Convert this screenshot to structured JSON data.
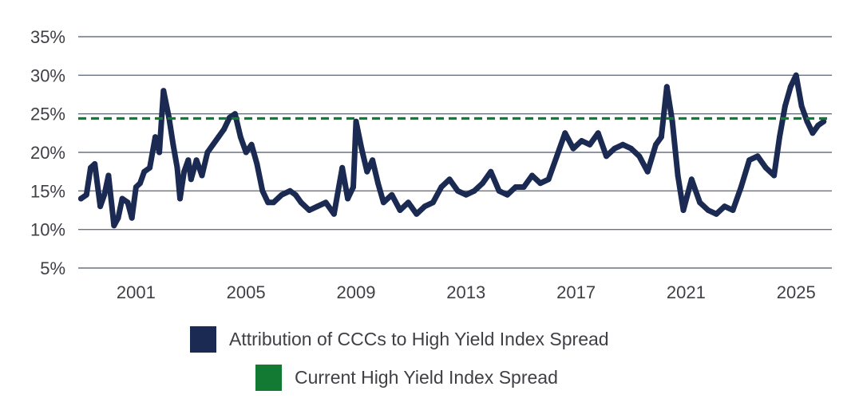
{
  "chart_data": {
    "type": "line",
    "ylim": [
      5,
      35
    ],
    "xlim": [
      1998.9,
      2026.3
    ],
    "y_ticks": [
      "5%",
      "10%",
      "15%",
      "20%",
      "25%",
      "30%",
      "35%"
    ],
    "y_tick_values": [
      5,
      10,
      15,
      20,
      25,
      30,
      35
    ],
    "x_ticks": [
      "2001",
      "2005",
      "2009",
      "2013",
      "2017",
      "2021",
      "2025"
    ],
    "x_tick_values": [
      2001,
      2005,
      2009,
      2013,
      2017,
      2021,
      2025
    ],
    "grid": true,
    "series": [
      {
        "name": "Attribution of CCCs to High Yield Index Spread",
        "color": "#1b2a52",
        "style": "solid",
        "x": [
          1999.0,
          1999.2,
          1999.35,
          1999.5,
          1999.7,
          1999.85,
          2000.0,
          2000.2,
          2000.35,
          2000.5,
          2000.7,
          2000.85,
          2001.0,
          2001.15,
          2001.3,
          2001.5,
          2001.7,
          2001.85,
          2002.0,
          2002.2,
          2002.35,
          2002.5,
          2002.6,
          2002.75,
          2002.9,
          2003.0,
          2003.2,
          2003.4,
          2003.6,
          2003.8,
          2004.0,
          2004.2,
          2004.4,
          2004.6,
          2004.8,
          2005.0,
          2005.2,
          2005.4,
          2005.6,
          2005.8,
          2006.0,
          2006.3,
          2006.6,
          2006.8,
          2007.0,
          2007.3,
          2007.6,
          2007.9,
          2008.2,
          2008.5,
          2008.7,
          2008.9,
          2009.0,
          2009.2,
          2009.4,
          2009.6,
          2009.8,
          2010.0,
          2010.3,
          2010.6,
          2010.9,
          2011.2,
          2011.5,
          2011.8,
          2012.1,
          2012.4,
          2012.7,
          2013.0,
          2013.3,
          2013.6,
          2013.9,
          2014.2,
          2014.5,
          2014.8,
          2015.1,
          2015.4,
          2015.7,
          2016.0,
          2016.3,
          2016.6,
          2016.9,
          2017.2,
          2017.5,
          2017.8,
          2018.1,
          2018.4,
          2018.7,
          2019.0,
          2019.3,
          2019.6,
          2019.9,
          2020.1,
          2020.3,
          2020.5,
          2020.7,
          2020.9,
          2021.2,
          2021.5,
          2021.8,
          2022.1,
          2022.4,
          2022.7,
          2023.0,
          2023.3,
          2023.6,
          2023.9,
          2024.2,
          2024.4,
          2024.6,
          2024.8,
          2025.0,
          2025.2,
          2025.4,
          2025.6,
          2025.8,
          2026.0
        ],
        "values": [
          14.0,
          14.5,
          18.0,
          18.5,
          13.0,
          14.5,
          17.0,
          10.5,
          11.5,
          14.0,
          13.5,
          11.5,
          15.5,
          16.0,
          17.5,
          18.0,
          22.0,
          20.0,
          28.0,
          24.5,
          21.0,
          18.0,
          14.0,
          17.5,
          19.0,
          16.5,
          19.0,
          17.0,
          20.0,
          21.0,
          22.0,
          23.0,
          24.5,
          25.0,
          22.0,
          20.0,
          21.0,
          18.5,
          15.0,
          13.5,
          13.5,
          14.5,
          15.0,
          14.5,
          13.5,
          12.5,
          13.0,
          13.5,
          12.0,
          18.0,
          14.0,
          15.5,
          24.0,
          20.5,
          17.5,
          19.0,
          16.0,
          13.5,
          14.5,
          12.5,
          13.5,
          12.0,
          13.0,
          13.5,
          15.5,
          16.5,
          15.0,
          14.5,
          15.0,
          16.0,
          17.5,
          15.0,
          14.5,
          15.5,
          15.5,
          17.0,
          16.0,
          16.5,
          19.5,
          22.5,
          20.5,
          21.5,
          21.0,
          22.5,
          19.5,
          20.5,
          21.0,
          20.5,
          19.5,
          17.5,
          21.0,
          22.0,
          28.5,
          24.0,
          17.0,
          12.5,
          16.5,
          13.5,
          12.5,
          12.0,
          13.0,
          12.5,
          15.5,
          19.0,
          19.5,
          18.0,
          17.0,
          22.0,
          26.0,
          28.5,
          30.0,
          26.0,
          24.0,
          22.5,
          23.5,
          24.0
        ]
      },
      {
        "name": "Current High Yield Index Spread",
        "color": "#127a33",
        "style": "dashed",
        "value": 24.4
      }
    ],
    "legend_placement": "bottom"
  },
  "legend": {
    "item1_label": "Attribution of CCCs to High Yield Index Spread",
    "item1_color": "#1b2a52",
    "item2_label": "Current High Yield Index Spread",
    "item2_color": "#127a33"
  }
}
